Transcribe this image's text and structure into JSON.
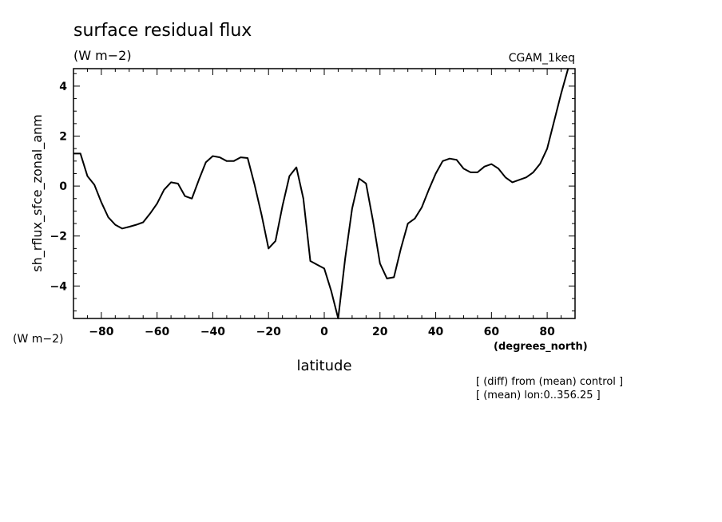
{
  "chart_data": {
    "type": "line",
    "title": "surface residual flux",
    "title_units": "(W m−2)",
    "model_label": "CGAM_1keq",
    "xlabel": "latitude",
    "x_units": "(degrees_north)",
    "ylabel": "sh_rflux_sfce_zonal_anm",
    "y_units": "(W m−2)",
    "xlim": [
      -90,
      90
    ],
    "ylim": [
      -5.3,
      4.7
    ],
    "x_ticks": [
      -80,
      -60,
      -40,
      -20,
      0,
      20,
      40,
      60,
      80
    ],
    "x_tick_labels": [
      "−80",
      "−60",
      "−40",
      "−20",
      "0",
      "20",
      "40",
      "60",
      "80"
    ],
    "y_ticks": [
      -4,
      -2,
      0,
      2,
      4
    ],
    "y_tick_labels": [
      "−4",
      "−2",
      "0",
      "2",
      "4"
    ],
    "grid": false,
    "notes": [
      "[ (diff) from (mean) control ]",
      "[ (mean) lon:0..356.25 ]"
    ],
    "x": [
      -90,
      -87.5,
      -85,
      -82.5,
      -80,
      -77.5,
      -75,
      -72.5,
      -70,
      -67.5,
      -65,
      -62.5,
      -60,
      -57.5,
      -55,
      -52.5,
      -50,
      -47.5,
      -45,
      -42.5,
      -40,
      -37.5,
      -35,
      -32.5,
      -30,
      -27.5,
      -25,
      -22.5,
      -20,
      -17.5,
      -15,
      -12.5,
      -10,
      -7.5,
      -5,
      -2.5,
      0,
      2.5,
      5,
      7.5,
      10,
      12.5,
      15,
      17.5,
      20,
      22.5,
      25,
      27.5,
      30,
      32.5,
      35,
      37.5,
      40,
      42.5,
      45,
      47.5,
      50,
      52.5,
      55,
      57.5,
      60,
      62.5,
      65,
      67.5,
      70,
      72.5,
      75,
      77.5,
      80,
      82.5,
      85,
      87.5
    ],
    "y": [
      1.3,
      1.3,
      0.4,
      0.05,
      -0.65,
      -1.25,
      -1.55,
      -1.7,
      -1.63,
      -1.55,
      -1.45,
      -1.1,
      -0.7,
      -0.15,
      0.15,
      0.1,
      -0.4,
      -0.5,
      0.25,
      0.95,
      1.2,
      1.15,
      1.0,
      1.0,
      1.15,
      1.12,
      0.05,
      -1.15,
      -2.5,
      -2.2,
      -0.8,
      0.4,
      0.75,
      -0.5,
      -3.0,
      -3.15,
      -3.3,
      -4.2,
      -5.3,
      -2.9,
      -0.9,
      0.3,
      0.1,
      -1.4,
      -3.1,
      -3.7,
      -3.65,
      -2.5,
      -1.5,
      -1.3,
      -0.85,
      -0.15,
      0.5,
      1.0,
      1.1,
      1.05,
      0.7,
      0.55,
      0.55,
      0.78,
      0.88,
      0.7,
      0.35,
      0.15,
      0.25,
      0.35,
      0.55,
      0.9,
      1.5,
      2.6,
      3.7,
      4.7
    ]
  }
}
